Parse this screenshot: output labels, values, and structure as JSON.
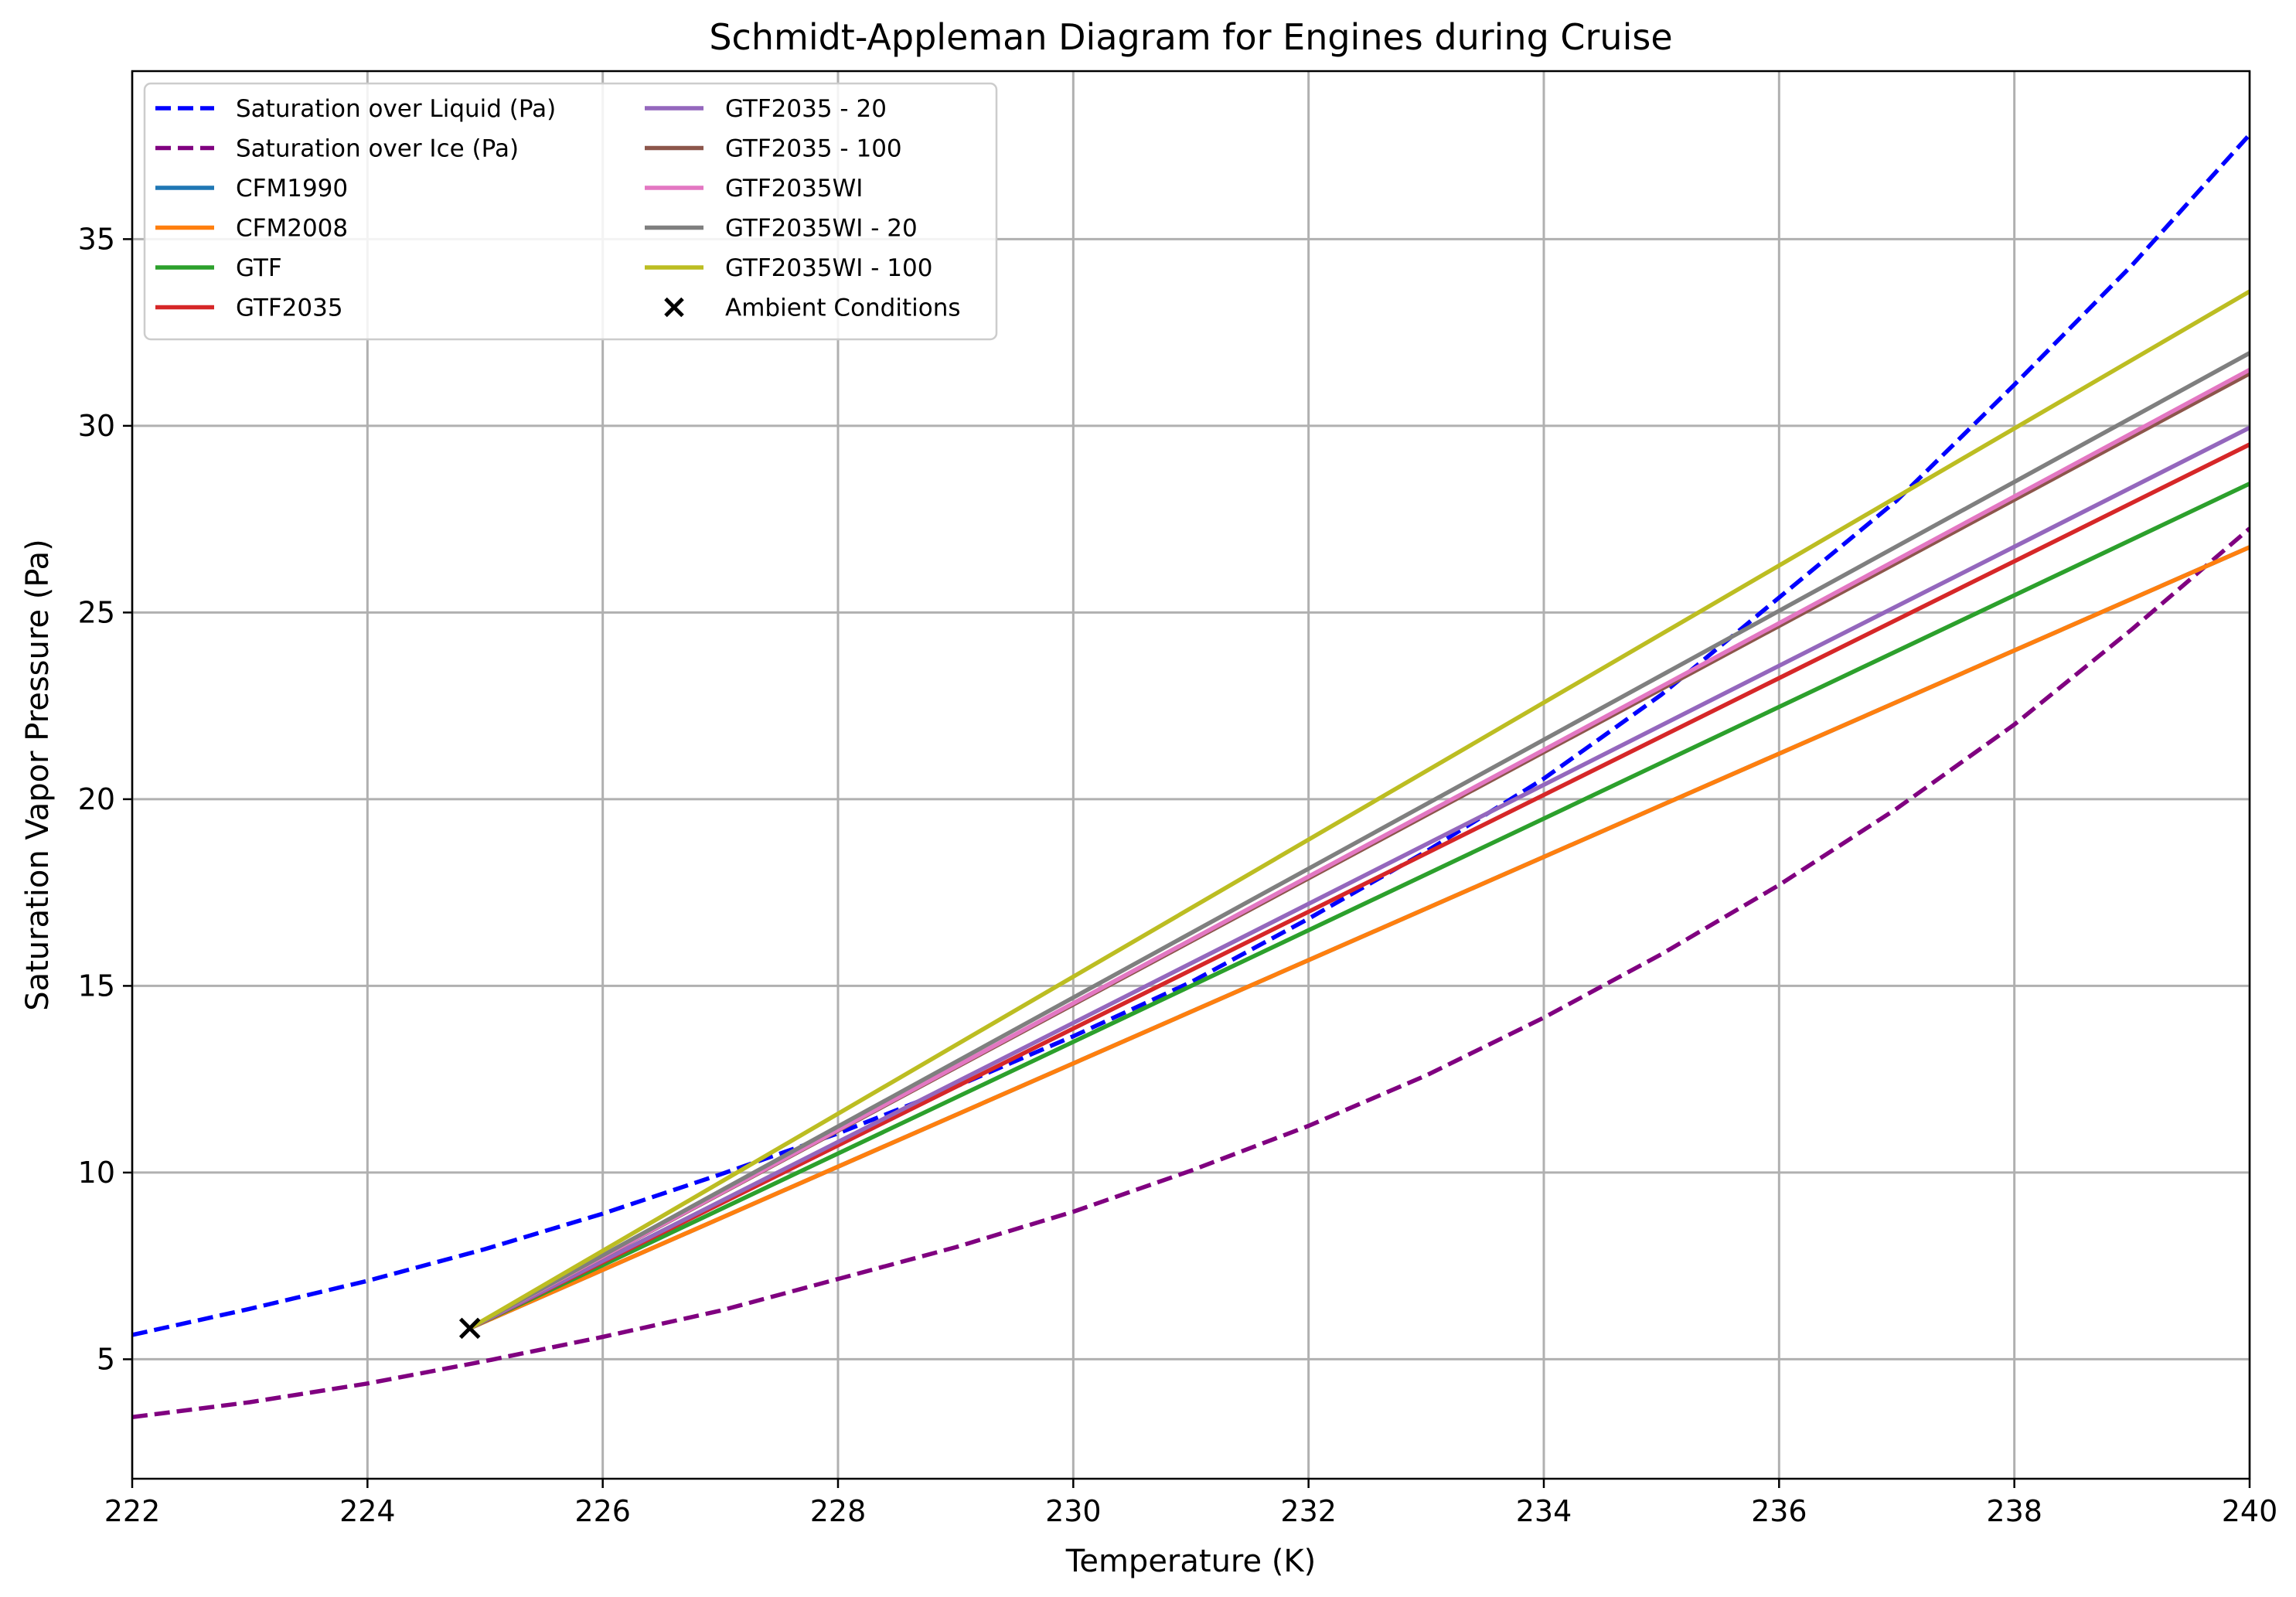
{
  "chart_data": {
    "type": "line",
    "title": "Schmidt-Appleman Diagram for Engines during Cruise",
    "xlabel": "Temperature (K)",
    "ylabel": "Saturation Vapor Pressure (Pa)",
    "xlim": [
      222,
      240
    ],
    "ylim": [
      1.8,
      39.5
    ],
    "xticks": [
      222,
      224,
      226,
      228,
      230,
      232,
      234,
      236,
      238,
      240
    ],
    "yticks": [
      5,
      10,
      15,
      20,
      25,
      30,
      35
    ],
    "grid": true,
    "legend_position": "upper-left",
    "legend_columns": 2,
    "series": [
      {
        "name": "Saturation over Liquid (Pa)",
        "color": "#0000ff",
        "dash": "dashed",
        "x": [
          222,
          223,
          224,
          225,
          226,
          227,
          228,
          229,
          230,
          231,
          232,
          233,
          234,
          235,
          236,
          237,
          238,
          239,
          240
        ],
        "y": [
          5.65,
          6.35,
          7.1,
          7.95,
          8.9,
          9.95,
          11.05,
          12.3,
          13.65,
          15.1,
          16.8,
          18.6,
          20.55,
          22.8,
          25.4,
          28.0,
          31.1,
          34.3,
          37.8
        ]
      },
      {
        "name": "Saturation over Ice (Pa)",
        "color": "#800080",
        "dash": "dashed",
        "x": [
          222,
          223,
          224,
          225,
          226,
          227,
          228,
          229,
          230,
          231,
          232,
          233,
          234,
          235,
          236,
          237,
          238,
          239,
          240
        ],
        "y": [
          3.45,
          3.85,
          4.35,
          4.95,
          5.6,
          6.3,
          7.15,
          8.0,
          8.95,
          10.05,
          11.25,
          12.6,
          14.15,
          15.85,
          17.7,
          19.75,
          22.0,
          24.55,
          27.25
        ]
      },
      {
        "name": "CFM1990",
        "color": "#1f77b4",
        "dash": "solid",
        "x": [
          224.87,
          240
        ],
        "y": [
          5.83,
          26.75
        ]
      },
      {
        "name": "CFM2008",
        "color": "#ff7f0e",
        "dash": "solid",
        "x": [
          224.87,
          240
        ],
        "y": [
          5.83,
          26.75
        ]
      },
      {
        "name": "GTF",
        "color": "#2ca02c",
        "dash": "solid",
        "x": [
          224.87,
          240
        ],
        "y": [
          5.83,
          28.45
        ]
      },
      {
        "name": "GTF2035",
        "color": "#d62728",
        "dash": "solid",
        "x": [
          224.87,
          240
        ],
        "y": [
          5.83,
          29.5
        ]
      },
      {
        "name": "GTF2035 - 20",
        "color": "#9467bd",
        "dash": "solid",
        "x": [
          224.87,
          240
        ],
        "y": [
          5.83,
          29.95
        ]
      },
      {
        "name": "GTF2035 - 100",
        "color": "#8c564b",
        "dash": "solid",
        "x": [
          224.87,
          240
        ],
        "y": [
          5.83,
          31.4
        ]
      },
      {
        "name": "GTF2035WI",
        "color": "#e377c2",
        "dash": "solid",
        "x": [
          224.87,
          240
        ],
        "y": [
          5.83,
          31.5
        ]
      },
      {
        "name": "GTF2035WI - 20",
        "color": "#7f7f7f",
        "dash": "solid",
        "x": [
          224.87,
          240
        ],
        "y": [
          5.83,
          31.95
        ]
      },
      {
        "name": "GTF2035WI - 100",
        "color": "#bcbd22",
        "dash": "solid",
        "x": [
          224.87,
          240
        ],
        "y": [
          5.83,
          33.6
        ]
      }
    ],
    "markers": [
      {
        "name": "Ambient Conditions",
        "symbol": "x",
        "color": "#000000",
        "x": 224.87,
        "y": 5.83
      }
    ]
  }
}
